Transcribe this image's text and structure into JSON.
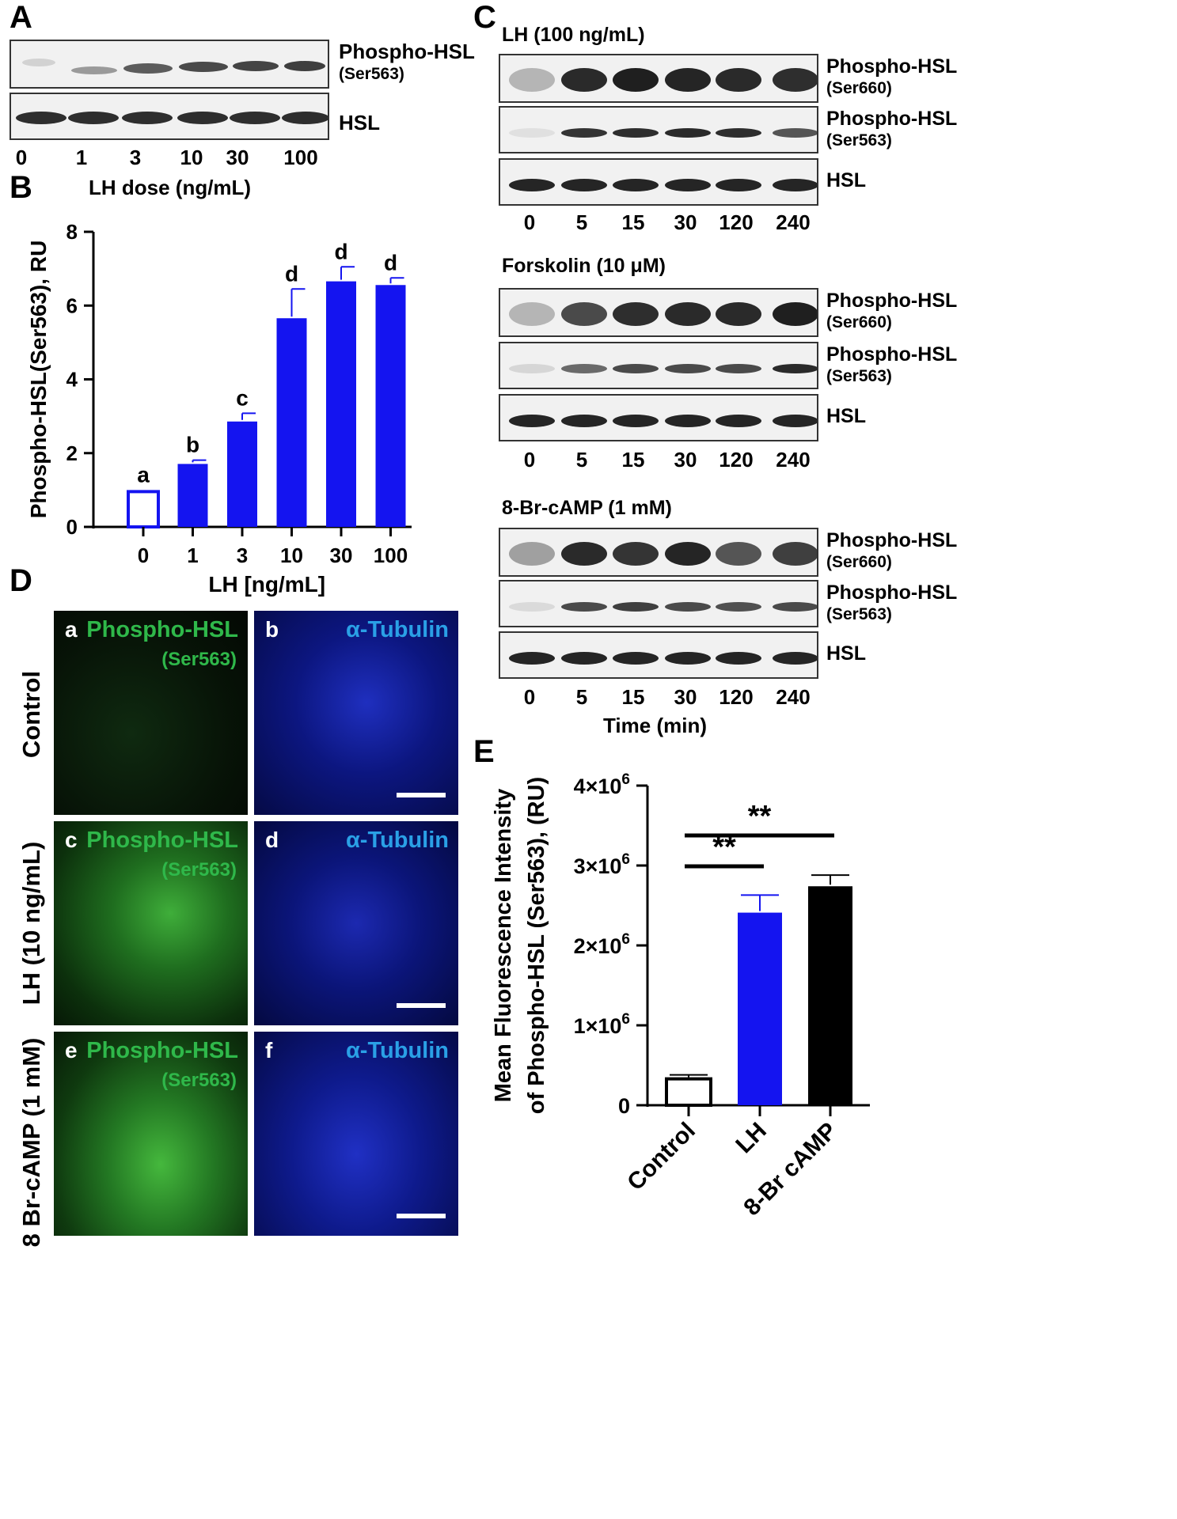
{
  "panels": {
    "A": {
      "letter": "A",
      "blot_labels": {
        "phospho": "Phospho-HSL",
        "phospho_site": "(Ser563)",
        "total": "HSL"
      },
      "lanes": [
        "0",
        "1",
        "3",
        "10",
        "30",
        "100"
      ],
      "xlabel": "LH dose (ng/mL)"
    },
    "B": {
      "letter": "B"
    },
    "C": {
      "letter": "C",
      "blocks": [
        {
          "title": "LH (100 ng/mL)",
          "rows": [
            {
              "label": "Phospho-HSL",
              "site": "(Ser660)"
            },
            {
              "label": "Phospho-HSL",
              "site": "(Ser563)"
            },
            {
              "label": "HSL",
              "site": ""
            }
          ],
          "lanes": [
            "0",
            "5",
            "15",
            "30",
            "120",
            "240"
          ]
        },
        {
          "title": "Forskolin (10 μM)",
          "rows": [
            {
              "label": "Phospho-HSL",
              "site": "(Ser660)"
            },
            {
              "label": "Phospho-HSL",
              "site": "(Ser563)"
            },
            {
              "label": "HSL",
              "site": ""
            }
          ],
          "lanes": [
            "0",
            "5",
            "15",
            "30",
            "120",
            "240"
          ]
        },
        {
          "title": "8-Br-cAMP (1 mM)",
          "rows": [
            {
              "label": "Phospho-HSL",
              "site": "(Ser660)"
            },
            {
              "label": "Phospho-HSL",
              "site": "(Ser563)"
            },
            {
              "label": "HSL",
              "site": ""
            }
          ],
          "lanes": [
            "0",
            "5",
            "15",
            "30",
            "120",
            "240"
          ]
        }
      ],
      "xlabel": "Time (min)"
    },
    "D": {
      "letter": "D",
      "rows": [
        "Control",
        "LH (10 ng/mL)",
        "8 Br-cAMP (1 mM)"
      ],
      "images": [
        {
          "letter": "a",
          "stain": "Phospho-HSL",
          "site": "(Ser563)",
          "channel": "green"
        },
        {
          "letter": "b",
          "stain": "α-Tubulin",
          "site": "",
          "channel": "blue"
        },
        {
          "letter": "c",
          "stain": "Phospho-HSL",
          "site": "(Ser563)",
          "channel": "green"
        },
        {
          "letter": "d",
          "stain": "α-Tubulin",
          "site": "",
          "channel": "blue"
        },
        {
          "letter": "e",
          "stain": "Phospho-HSL",
          "site": "(Ser563)",
          "channel": "green"
        },
        {
          "letter": "f",
          "stain": "α-Tubulin",
          "site": "",
          "channel": "blue"
        }
      ]
    },
    "E": {
      "letter": "E"
    }
  },
  "chart_data": [
    {
      "id": "B",
      "type": "bar",
      "categories": [
        "0",
        "1",
        "3",
        "10",
        "30",
        "100"
      ],
      "values": [
        1.0,
        1.75,
        2.9,
        5.7,
        6.7,
        6.6
      ],
      "errors": [
        0.0,
        0.06,
        0.18,
        0.75,
        0.35,
        0.15
      ],
      "letters": [
        "a",
        "b",
        "c",
        "d",
        "d",
        "d"
      ],
      "xlabel": "LH [ng/mL]",
      "ylabel": "Phospho-HSL(Ser563), RU",
      "ylim": [
        0,
        8
      ],
      "yticks": [
        "0",
        "2",
        "4",
        "6",
        "8"
      ],
      "colors": {
        "bar": "#1414f0",
        "control_fill": "#ffffff"
      }
    },
    {
      "id": "E",
      "type": "bar",
      "categories": [
        "Control",
        "LH",
        "8-Br cAMP"
      ],
      "values": [
        350000,
        2430000,
        2760000
      ],
      "errors": [
        30000,
        200000,
        120000
      ],
      "ylabel_lines": [
        "Mean Fluorescence Intensity",
        "of Phospho-HSL (Ser563), (RU)"
      ],
      "ylim": [
        0,
        4000000
      ],
      "yticks": [
        {
          "base": "0",
          "exp": ""
        },
        {
          "base": "1×10",
          "exp": "6"
        },
        {
          "base": "2×10",
          "exp": "6"
        },
        {
          "base": "3×10",
          "exp": "6"
        },
        {
          "base": "4×10",
          "exp": "6"
        }
      ],
      "significance": [
        {
          "from": 0,
          "to": 1,
          "label": "**"
        },
        {
          "from": 0,
          "to": 2,
          "label": "**"
        }
      ],
      "colors": {
        "control": "#ffffff",
        "lh": "#1414f0",
        "cAMP": "#000000"
      }
    }
  ]
}
